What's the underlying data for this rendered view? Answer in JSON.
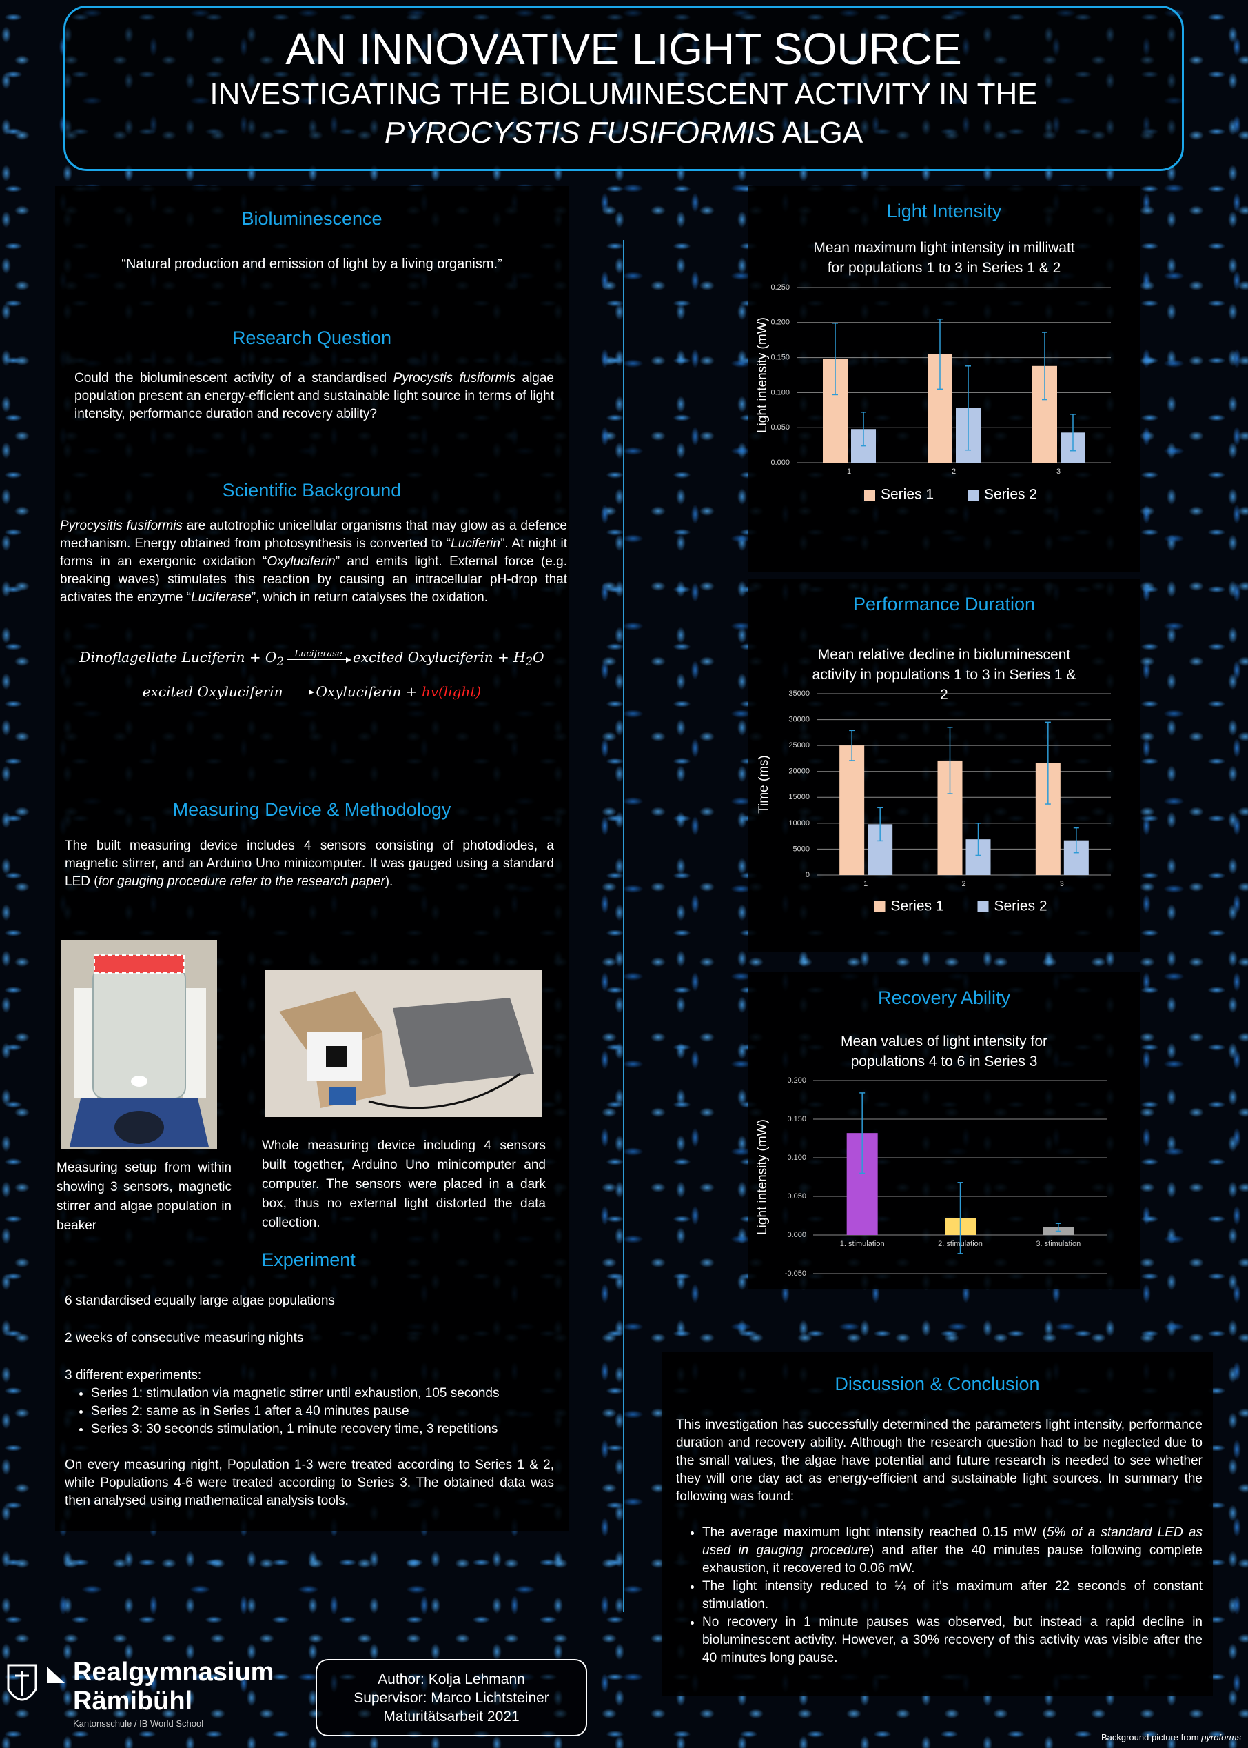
{
  "header": {
    "title": "AN INNOVATIVE LIGHT SOURCE",
    "subtitle": [
      "INVESTIGATING THE BIOLUMINESCENT ACTIVITY IN THE ",
      "PYROCYSTIS FUSIFORMIS",
      " ALGA"
    ]
  },
  "bioluminescence": {
    "heading": "Bioluminescence",
    "quote": "“Natural production and emission of light by a living organism.”"
  },
  "research_question": {
    "heading": "Research Question",
    "text": [
      "Could the bioluminescent activity of a standardised ",
      "Pyrocystis fusiformis",
      " algae population present an energy-efficient and sustainable light source in terms of light intensity, performance duration and recovery ability?"
    ]
  },
  "scientific_background": {
    "heading": "Scientific Background",
    "text": [
      "Pyrocysitis fusiformis",
      " are autotrophic unicellular organisms that may glow as a defence mechanism. Energy obtained from photosynthesis is converted to “",
      "Luciferin",
      "”. At night it forms in an exergonic oxidation “",
      "Oxyluciferin",
      "” and emits light. External force (e.g. breaking waves) stimulates this reaction by causing an intracellular pH-drop that activates the enzyme “",
      "Luciferase",
      "”, which in return catalyses the oxidation."
    ],
    "equation_1": {
      "lhs": "Dinoflagellate Luciferin + O",
      "lhs_sub": "2",
      "catalyst": "Luciferase",
      "rhs": "excited Oxyluciferin + H",
      "rhs_sub": "2",
      "rhs_end": "O"
    },
    "equation_2": {
      "lhs": "excited Oxyluciferin",
      "rhs": "Oxyluciferin + ",
      "product": "hv(light)"
    }
  },
  "methodology": {
    "heading": "Measuring Device & Methodology",
    "text": [
      "The built measuring device includes 4 sensors consisting of photodiodes, a magnetic stirrer, and an Arduino Uno minicomputer. It was gauged using a standard LED (",
      "for gauging procedure refer to the research paper",
      ")."
    ],
    "caption_1": "Measuring setup from within showing 3 sensors, magnetic stirrer and algae population in beaker",
    "caption_2": "Whole measuring device including 4 sensors built together, Arduino Uno minicomputer and computer. The sensors were placed in a dark box, thus no external light distorted the data collection."
  },
  "experiment": {
    "heading": "Experiment",
    "items": [
      "6 standardised equally large algae populations",
      "2 weeks of consecutive measuring nights",
      "3 different experiments:"
    ],
    "bullets": [
      "Series 1: stimulation via magnetic stirrer until exhaustion, 105 seconds",
      "Series 2: same as in Series 1 after a 40 minutes pause",
      "Series 3: 30 seconds stimulation, 1 minute recovery time, 3 repetitions"
    ],
    "closing": "On every measuring night, Population 1-3 were treated according to Series 1 & 2, while Populations 4-6 were treated according to Series 3. The obtained data was then analysed using mathematical analysis tools."
  },
  "chart_data": [
    {
      "type": "bar",
      "heading": "Light Intensity",
      "title": "Mean maximum light intensity in milliwatt for populations 1 to 3 in Series 1 & 2",
      "y_label": "Light intensity (mW)",
      "categories": [
        "1",
        "2",
        "3"
      ],
      "series": [
        {
          "name": "Series 1",
          "color": "#f8cbad",
          "values": [
            0.148,
            0.155,
            0.138
          ],
          "errors": [
            0.051,
            0.05,
            0.048
          ]
        },
        {
          "name": "Series 2",
          "color": "#b4c7e7",
          "values": [
            0.048,
            0.078,
            0.043
          ],
          "errors": [
            0.024,
            0.06,
            0.026
          ]
        }
      ],
      "error_color": "#2e9bd6",
      "ylim": [
        0,
        0.25
      ],
      "yticks": [
        {
          "value": 0,
          "label": "0.000"
        },
        {
          "value": 0.05,
          "label": "0.050"
        },
        {
          "value": 0.1,
          "label": "0.100"
        },
        {
          "value": 0.15,
          "label": "0.150"
        },
        {
          "value": 0.2,
          "label": "0.200"
        },
        {
          "value": 0.25,
          "label": "0.250"
        }
      ],
      "grid": true,
      "legend": "bottom"
    },
    {
      "type": "bar",
      "heading": "Performance Duration",
      "title": "Mean relative decline in bioluminescent activity in populations 1 to 3 in Series 1 & 2",
      "y_label": "Time (ms)",
      "categories": [
        "1",
        "2",
        "3"
      ],
      "series": [
        {
          "name": "Series 1",
          "color": "#f8cbad",
          "values": [
            25000,
            22100,
            21600
          ],
          "errors": [
            2900,
            6400,
            7900
          ]
        },
        {
          "name": "Series 2",
          "color": "#b4c7e7",
          "values": [
            9800,
            6900,
            6700
          ],
          "errors": [
            3200,
            3100,
            2400
          ]
        }
      ],
      "error_color": "#2e9bd6",
      "ylim": [
        0,
        35000
      ],
      "yticks": [
        0,
        5000,
        10000,
        15000,
        20000,
        25000,
        30000,
        35000
      ],
      "grid": true,
      "legend": "bottom"
    },
    {
      "type": "bar",
      "heading": "Recovery Ability",
      "title": "Mean values of light intensity for populations 4 to 6 in Series 3",
      "y_label": "Light intensity (mW)",
      "categories": [
        "1. stimulation",
        "2. stimulation",
        "3. stimulation"
      ],
      "values": [
        0.132,
        0.022,
        0.01
      ],
      "errors": [
        0.052,
        0.046,
        0.005
      ],
      "colors": [
        "#b050d8",
        "#ffd966",
        "#a5a5a5"
      ],
      "error_color": "#2e9bd6",
      "ylim": [
        -0.05,
        0.2
      ],
      "yticks": [
        {
          "value": -0.05,
          "label": "-0.050"
        },
        {
          "value": 0,
          "label": "0.000"
        },
        {
          "value": 0.05,
          "label": "0.050"
        },
        {
          "value": 0.1,
          "label": "0.100"
        },
        {
          "value": 0.15,
          "label": "0.150"
        },
        {
          "value": 0.2,
          "label": "0.200"
        }
      ],
      "grid": true
    }
  ],
  "discussion": {
    "heading": "Discussion & Conclusion",
    "text": "This investigation has successfully determined the parameters light intensity, performance duration and recovery ability. Although the research question had to be neglected due to the small values, the algae have potential and future research is needed to see whether they will one day act as energy-efficient and sustainable light sources. In summary the following was found:",
    "bullets": [
      [
        "The average maximum light intensity reached 0.15 mW (",
        "5% of a standard LED as used in gauging procedure",
        ") and after the 40 minutes pause following complete exhaustion, it recovered to 0.06 mW."
      ],
      "The light intensity reduced to ¼ of it’s maximum after 22 seconds of constant stimulation.",
      "No recovery in 1 minute pauses was observed, but instead a rapid decline in bioluminescent activity. However, a 30% recovery of this activity was visible after the 40 minutes long pause."
    ]
  },
  "footer": {
    "school": [
      "Realgymnasium",
      "Rämibühl"
    ],
    "school_subtitle": "Kantonsschule / IB World School",
    "credits": [
      "Author: Kolja Lehmann",
      "Supervisor: Marco Lichtsteiner",
      "Maturitätsarbeit 2021"
    ],
    "background_credit": [
      "Background picture from ",
      "pyroforms"
    ]
  }
}
